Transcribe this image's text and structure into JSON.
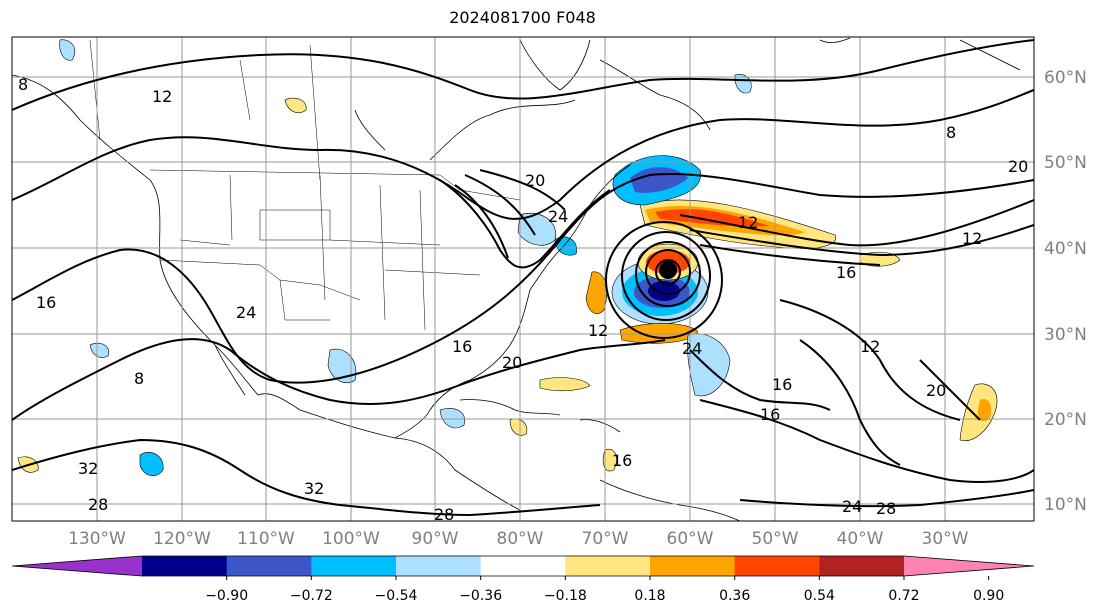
{
  "figure": {
    "title": "2024081700 F048"
  },
  "map": {
    "lon_range": [
      -138,
      -19
    ],
    "lat_range": [
      7,
      65
    ],
    "gridlines": true,
    "lon_ticks": [
      {
        "lon": -130,
        "label": "130°W"
      },
      {
        "lon": -120,
        "label": "120°W"
      },
      {
        "lon": -110,
        "label": "110°W"
      },
      {
        "lon": -100,
        "label": "100°W"
      },
      {
        "lon": -90,
        "label": "90°W"
      },
      {
        "lon": -80,
        "label": "80°W"
      },
      {
        "lon": -70,
        "label": "70°W"
      },
      {
        "lon": -60,
        "label": "60°W"
      },
      {
        "lon": -50,
        "label": "50°W"
      },
      {
        "lon": -40,
        "label": "40°W"
      },
      {
        "lon": -30,
        "label": "30°W"
      }
    ],
    "lat_ticks": [
      {
        "lat": 60,
        "label": "60°N"
      },
      {
        "lat": 50,
        "label": "50°N"
      },
      {
        "lat": 40,
        "label": "40°N"
      },
      {
        "lat": 30,
        "label": "30°N"
      },
      {
        "lat": 20,
        "label": "20°N"
      },
      {
        "lat": 10,
        "label": "10°N"
      }
    ],
    "contour_labels": [
      "8",
      "12",
      "16",
      "20",
      "24",
      "28",
      "32",
      "16",
      "12",
      "24",
      "20",
      "16",
      "8",
      "12",
      "16",
      "20",
      "24",
      "28",
      "32",
      "8",
      "12",
      "16",
      "24",
      "12",
      "16",
      "20",
      "28"
    ]
  },
  "colorbar": {
    "labels": [
      "−0.90",
      "−0.72",
      "−0.54",
      "−0.36",
      "−0.18",
      "0.18",
      "0.36",
      "0.54",
      "0.72",
      "0.90"
    ],
    "colors": [
      "#9932CC",
      "#00008B",
      "#3A56C8",
      "#00BFFF",
      "#ADDFFF",
      "#FFFFFF",
      "#FFE680",
      "#FFA500",
      "#FF4500",
      "#B22222",
      "#FF82B4"
    ],
    "extend": "both"
  }
}
